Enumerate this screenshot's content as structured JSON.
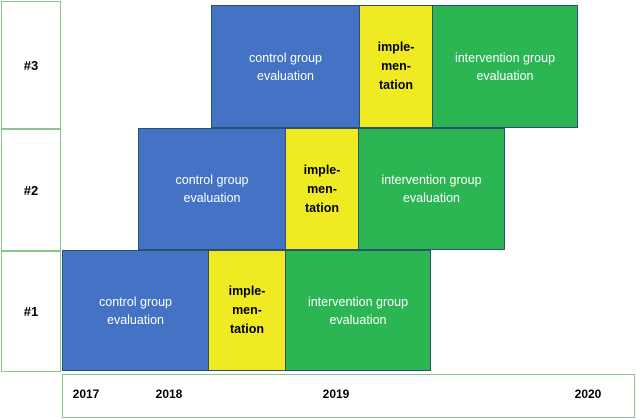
{
  "rows": [
    {
      "label": "#3"
    },
    {
      "label": "#2"
    },
    {
      "label": "#1"
    }
  ],
  "years": [
    "2017",
    "2018",
    "2019",
    "2020"
  ],
  "blocks": {
    "control_line1": "control group",
    "control_line2": "evaluation",
    "impl_line1": "imple-",
    "impl_line2": "men-",
    "impl_line3": "tation",
    "interv_line1": "intervention group",
    "interv_line2": "evaluation"
  },
  "colors": {
    "control": "#4472c4",
    "implementation": "#f0ea23",
    "intervention": "#2bb653",
    "frame": "#8cc58c"
  }
}
